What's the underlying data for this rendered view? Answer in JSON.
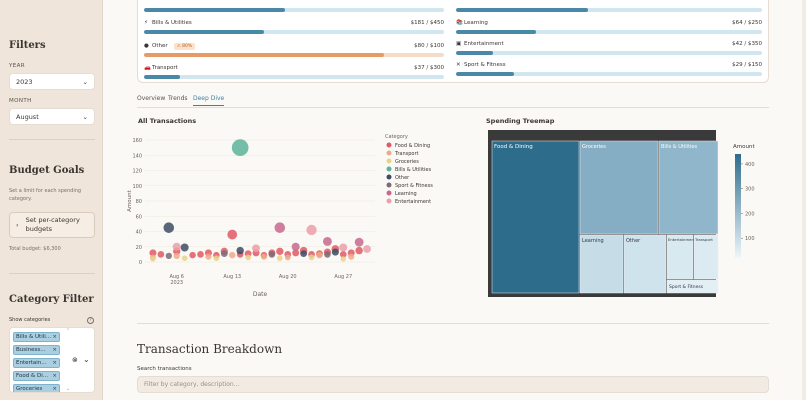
{
  "sidebar": {
    "filters_title": "Filters",
    "year_label": "YEAR",
    "year_value": "2023",
    "month_label": "MONTH",
    "month_value": "August",
    "budget_title": "Budget Goals",
    "budget_desc": "Set a limit for each spending category.",
    "set_budgets_button": "Set per-category budgets",
    "total_budget": "Total budget: $6,300",
    "category_filter_title": "Category Filter",
    "show_categories_label": "Show categories",
    "tags": [
      "Bills & Utili...",
      "Business...",
      "Entertain...",
      "Food & Di...",
      "Groceries"
    ]
  },
  "budgets": [
    {
      "name": "Bills & Utilities",
      "icon": "⚡",
      "amount": "$181 / $450",
      "pct": 0.4,
      "col": 0
    },
    {
      "name": "Other",
      "icon": "●",
      "amount": "$80 / $100",
      "pct": 0.8,
      "badge": "⚠ 80%",
      "color": "#e69a66",
      "col": 0
    },
    {
      "name": "Transport",
      "icon": "🚗",
      "amount": "$37 / $300",
      "pct": 0.12,
      "col": 0
    },
    {
      "name": "Learning",
      "icon": "📚",
      "amount": "$64 / $250",
      "pct": 0.26,
      "col": 1
    },
    {
      "name": "Entertainment",
      "icon": "▣",
      "amount": "$42 / $350",
      "pct": 0.12,
      "col": 1
    },
    {
      "name": "Sport & Fitness",
      "icon": "✕",
      "amount": "$29 / $150",
      "pct": 0.19,
      "col": 1
    }
  ],
  "top_bar_fill_pcts": [
    0.47,
    0.43
  ],
  "tabs": [
    "Overview",
    "Trends",
    "Deep Dive"
  ],
  "active_tab": "Deep Dive",
  "chart_data": [
    {
      "type": "scatter",
      "title": "All Transactions",
      "xlabel": "Date",
      "ylabel": "Amount",
      "ylim": [
        0,
        160
      ],
      "yticks": [
        0,
        20,
        40,
        60,
        80,
        100,
        120,
        140,
        160
      ],
      "xticks": [
        {
          "label": "Aug 6\n2023",
          "day": 6
        },
        {
          "label": "Aug 13",
          "day": 13
        },
        {
          "label": "Aug 20",
          "day": 20
        },
        {
          "label": "Aug 27",
          "day": 27
        }
      ],
      "xlim": [
        2,
        31
      ],
      "legend_title": "Category",
      "legend_position": "right",
      "series": [
        {
          "name": "Food & Dining",
          "color": "#e05a63",
          "points": [
            [
              3,
              12
            ],
            [
              4,
              10
            ],
            [
              6,
              14
            ],
            [
              8,
              9
            ],
            [
              9,
              10
            ],
            [
              10,
              12
            ],
            [
              11,
              9
            ],
            [
              12,
              14
            ],
            [
              13,
              36
            ],
            [
              14,
              10
            ],
            [
              15,
              11
            ],
            [
              16,
              12
            ],
            [
              17,
              9
            ],
            [
              18,
              12
            ],
            [
              19,
              14
            ],
            [
              20,
              10
            ],
            [
              21,
              12
            ],
            [
              22,
              15
            ],
            [
              23,
              10
            ],
            [
              24,
              11
            ],
            [
              25,
              13
            ],
            [
              26,
              17
            ],
            [
              27,
              10
            ],
            [
              28,
              12
            ],
            [
              29,
              15
            ]
          ]
        },
        {
          "name": "Transport",
          "color": "#f0a986",
          "points": [
            [
              3,
              6
            ],
            [
              6,
              8
            ],
            [
              10,
              7
            ],
            [
              13,
              9
            ],
            [
              17,
              7
            ],
            [
              20,
              6
            ],
            [
              24,
              9
            ],
            [
              28,
              7
            ]
          ]
        },
        {
          "name": "Groceries",
          "color": "#e9d38a",
          "points": [
            [
              3,
              4
            ],
            [
              7,
              5
            ],
            [
              11,
              5
            ],
            [
              15,
              6
            ],
            [
              19,
              5
            ],
            [
              23,
              6
            ],
            [
              27,
              4
            ]
          ]
        },
        {
          "name": "Bills & Utilities",
          "color": "#5cb49a",
          "points": [
            [
              14,
              150
            ]
          ]
        },
        {
          "name": "Other",
          "color": "#3d4d63",
          "points": [
            [
              5,
              45
            ],
            [
              7,
              19
            ],
            [
              14,
              15
            ],
            [
              22,
              11
            ],
            [
              26,
              13
            ]
          ]
        },
        {
          "name": "Sport & Fitness",
          "color": "#7b6a78",
          "points": [
            [
              5,
              8
            ],
            [
              12,
              11
            ],
            [
              18,
              10
            ],
            [
              25,
              10
            ]
          ]
        },
        {
          "name": "Learning",
          "color": "#c8688d",
          "points": [
            [
              19,
              45
            ],
            [
              21,
              20
            ],
            [
              25,
              27
            ],
            [
              29,
              26
            ]
          ]
        },
        {
          "name": "Entertainment",
          "color": "#eba0a9",
          "points": [
            [
              23,
              42
            ],
            [
              6,
              20
            ],
            [
              16,
              18
            ],
            [
              27,
              19
            ],
            [
              30,
              17
            ]
          ]
        }
      ]
    },
    {
      "type": "treemap",
      "title": "Spending Treemap",
      "colorbar_label": "Amount",
      "colorbar_ticks": [
        100,
        200,
        300,
        400
      ],
      "categories": [
        "Food & Dining",
        "Groceries",
        "Bills & Utilities",
        "Learning",
        "Other",
        "Entertainment",
        "Transport",
        "Sport & Fitness"
      ]
    }
  ],
  "breakdown": {
    "title": "Transaction Breakdown",
    "search_label": "Search transactions",
    "search_placeholder": "Filter by category, description..."
  }
}
